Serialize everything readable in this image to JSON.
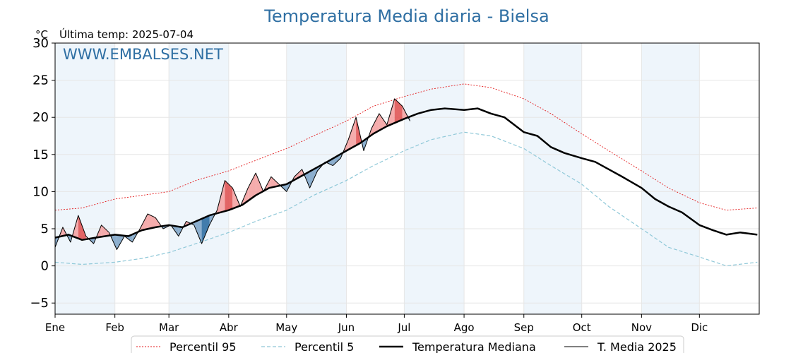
{
  "chart_data": {
    "type": "line",
    "title": "Temperatura Media diaria - Bielsa",
    "unit_label": "°C",
    "last_temp_label": "Última temp: 2025-07-04",
    "watermark": "WWW.EMBALSES.NET",
    "ylim": [
      -6.5,
      30
    ],
    "yticks": [
      -5,
      0,
      5,
      10,
      15,
      20,
      25,
      30
    ],
    "months": [
      "Ene",
      "Feb",
      "Mar",
      "Abr",
      "May",
      "Jun",
      "Jul",
      "Ago",
      "Sep",
      "Oct",
      "Nov",
      "Dic"
    ],
    "month_start_days": [
      1,
      32,
      60,
      91,
      121,
      152,
      182,
      213,
      244,
      274,
      305,
      335
    ],
    "shaded_month_indices": [
      0,
      2,
      4,
      6,
      8,
      10
    ],
    "grid": true,
    "legend_position": "bottom-center",
    "colors": {
      "p95": "#e31a1c",
      "p5": "#8fc8d8",
      "median": "#000000",
      "current": "#000000",
      "above": "#f4a3a3",
      "above_strong": "#e05555",
      "below": "#7fa6c9",
      "below_strong": "#2f6fa3",
      "band": "#eef5fb",
      "title": "#2f6fa3"
    },
    "series": [
      {
        "name": "Percentil 95",
        "key": "p95",
        "x": [
          1,
          15,
          32,
          46,
          60,
          74,
          91,
          105,
          121,
          135,
          152,
          166,
          182,
          196,
          213,
          227,
          244,
          258,
          274,
          288,
          305,
          319,
          335,
          349,
          365
        ],
        "values": [
          7.5,
          7.8,
          9.0,
          9.5,
          10.0,
          11.5,
          12.8,
          14.2,
          15.8,
          17.5,
          19.5,
          21.5,
          22.8,
          23.8,
          24.5,
          24.0,
          22.5,
          20.5,
          17.8,
          15.5,
          12.8,
          10.5,
          8.5,
          7.5,
          7.8
        ]
      },
      {
        "name": "Percentil 5",
        "key": "p5",
        "x": [
          1,
          15,
          32,
          46,
          60,
          74,
          91,
          105,
          121,
          135,
          152,
          166,
          182,
          196,
          213,
          227,
          244,
          258,
          274,
          288,
          305,
          319,
          335,
          349,
          365
        ],
        "values": [
          0.5,
          0.2,
          0.5,
          1.0,
          1.8,
          3.0,
          4.5,
          6.0,
          7.5,
          9.5,
          11.5,
          13.5,
          15.5,
          17.0,
          18.0,
          17.5,
          15.8,
          13.5,
          11.0,
          8.0,
          5.0,
          2.5,
          1.2,
          0.0,
          0.5
        ]
      },
      {
        "name": "Temperatura Mediana",
        "key": "median",
        "x": [
          1,
          8,
          15,
          22,
          32,
          39,
          46,
          53,
          60,
          67,
          74,
          81,
          91,
          98,
          105,
          112,
          121,
          128,
          135,
          142,
          152,
          159,
          166,
          173,
          182,
          189,
          196,
          203,
          213,
          220,
          227,
          234,
          244,
          251,
          258,
          265,
          274,
          281,
          288,
          295,
          305,
          312,
          319,
          326,
          335,
          342,
          349,
          356,
          365
        ],
        "values": [
          3.8,
          4.2,
          3.5,
          3.8,
          4.2,
          4.0,
          4.8,
          5.2,
          5.5,
          5.2,
          6.0,
          6.8,
          7.5,
          8.2,
          9.5,
          10.5,
          11.0,
          12.0,
          13.0,
          14.0,
          15.5,
          16.5,
          17.8,
          18.8,
          19.8,
          20.5,
          21.0,
          21.2,
          21.0,
          21.2,
          20.5,
          20.0,
          18.0,
          17.5,
          16.0,
          15.2,
          14.5,
          14.0,
          13.0,
          12.0,
          10.5,
          9.0,
          8.0,
          7.2,
          5.5,
          4.8,
          4.2,
          4.5,
          4.2
        ]
      },
      {
        "name": "T. Media 2025",
        "key": "current",
        "x": [
          1,
          5,
          9,
          13,
          17,
          21,
          25,
          29,
          33,
          37,
          41,
          45,
          49,
          53,
          57,
          61,
          65,
          69,
          73,
          77,
          81,
          85,
          89,
          93,
          97,
          101,
          105,
          109,
          113,
          117,
          121,
          125,
          129,
          133,
          137,
          141,
          145,
          149,
          153,
          157,
          161,
          165,
          169,
          173,
          177,
          181,
          185
        ],
        "values": [
          2.5,
          5.2,
          3.2,
          6.8,
          4.0,
          3.0,
          5.5,
          4.5,
          2.2,
          4.0,
          3.2,
          5.0,
          7.0,
          6.5,
          5.0,
          5.5,
          4.0,
          6.0,
          5.5,
          3.0,
          5.5,
          7.5,
          11.5,
          10.5,
          8.0,
          10.5,
          12.5,
          10.0,
          12.0,
          11.0,
          10.0,
          12.0,
          13.0,
          10.5,
          12.8,
          14.0,
          13.5,
          14.5,
          17.0,
          20.0,
          15.5,
          18.5,
          20.5,
          19.0,
          22.5,
          21.5,
          19.5
        ]
      }
    ]
  }
}
